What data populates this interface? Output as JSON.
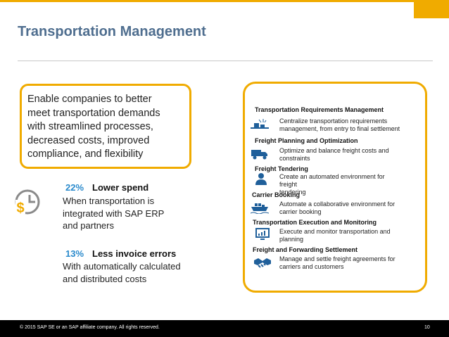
{
  "header": {
    "title": "Transportation Management"
  },
  "callout": {
    "lines": [
      "Enable companies to better",
      "meet transportation demands",
      "with streamlined processes,",
      "decreased costs, improved",
      "compliance, and flexibility"
    ]
  },
  "stats": [
    {
      "percent": "22%",
      "headline": "Lower spend",
      "lines": [
        "When transportation is",
        "integrated with SAP ERP",
        "and partners"
      ]
    },
    {
      "percent": "13%",
      "headline": "Less invoice errors",
      "lines": [
        "With automatically calculated",
        "and distributed costs"
      ]
    }
  ],
  "capabilities": [
    {
      "title": "Transportation Requirements Management",
      "lines": [
        "Centralize transportation requirements",
        "management, from entry to final settlement"
      ],
      "icon": "conveyor-icon"
    },
    {
      "title": "Freight Planning and Optimization",
      "lines": [
        "Optimize and balance freight costs and",
        "constraints"
      ],
      "icon": "truck-icon"
    },
    {
      "title": "Freight Tendering",
      "lines": [
        "Create an automated environment for freight",
        "tendering"
      ],
      "icon": "person-icon"
    },
    {
      "title": "Carrier Booking",
      "lines": [
        "Automate a collaborative environment for",
        "carrier booking"
      ],
      "icon": "ship-icon"
    },
    {
      "title": "Transportation Execution and Monitoring",
      "lines": [
        "Execute and monitor transportation and",
        "planning"
      ],
      "icon": "monitor-chart-icon"
    },
    {
      "title": "Freight and Forwarding Settlement",
      "lines": [
        "Manage and settle freight agreements for",
        "carriers and customers"
      ],
      "icon": "handshake-icon"
    }
  ],
  "footer": {
    "copyright": "© 2015 SAP SE or an SAP affiliate company. All rights reserved.",
    "page": "10"
  },
  "colors": {
    "accent": "#f0ab00",
    "title": "#4f6e8f",
    "percent": "#2a8acc",
    "icon": "#1f5f9a"
  }
}
